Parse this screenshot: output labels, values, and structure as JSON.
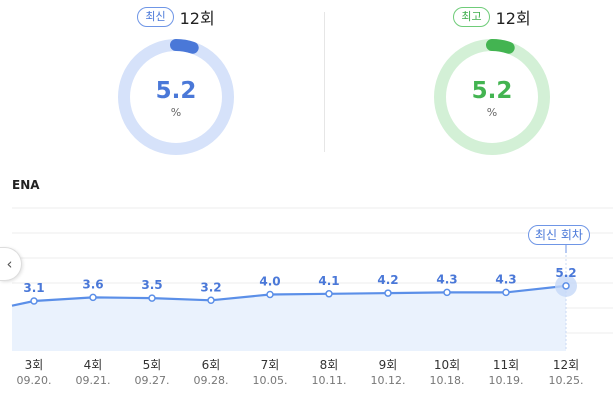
{
  "latest": {
    "badge": "최신",
    "round": "12회",
    "value": "5.2",
    "unit": "%",
    "fraction": 0.052,
    "color": "#4a78d8",
    "track_color": "#d6e2fa"
  },
  "best": {
    "badge": "최고",
    "round": "12회",
    "value": "5.2",
    "unit": "%",
    "fraction": 0.052,
    "color": "#43b451",
    "track_color": "#d3f0d6"
  },
  "channel": "ENA",
  "callout": "최신 회차",
  "prev_icon": "chevron-left-icon",
  "chart_data": {
    "type": "line",
    "categories": [
      "3회",
      "4회",
      "5회",
      "6회",
      "7회",
      "8회",
      "9회",
      "10회",
      "11회",
      "12회"
    ],
    "dates": [
      "09.20.",
      "09.21.",
      "09.27.",
      "09.28.",
      "10.05.",
      "10.11.",
      "10.12.",
      "10.18.",
      "10.19.",
      "10.25."
    ],
    "values": [
      3.1,
      3.6,
      3.5,
      3.2,
      4.0,
      4.1,
      4.2,
      4.3,
      4.3,
      5.2
    ],
    "labels": [
      "3.1",
      "3.6",
      "3.5",
      "3.2",
      "4.0",
      "4.1",
      "4.2",
      "4.3",
      "4.3",
      "5.2"
    ],
    "line_color": "#5b8fe8",
    "fill_color": "#eaf2fd",
    "highlight_index": 9,
    "grid": true
  }
}
